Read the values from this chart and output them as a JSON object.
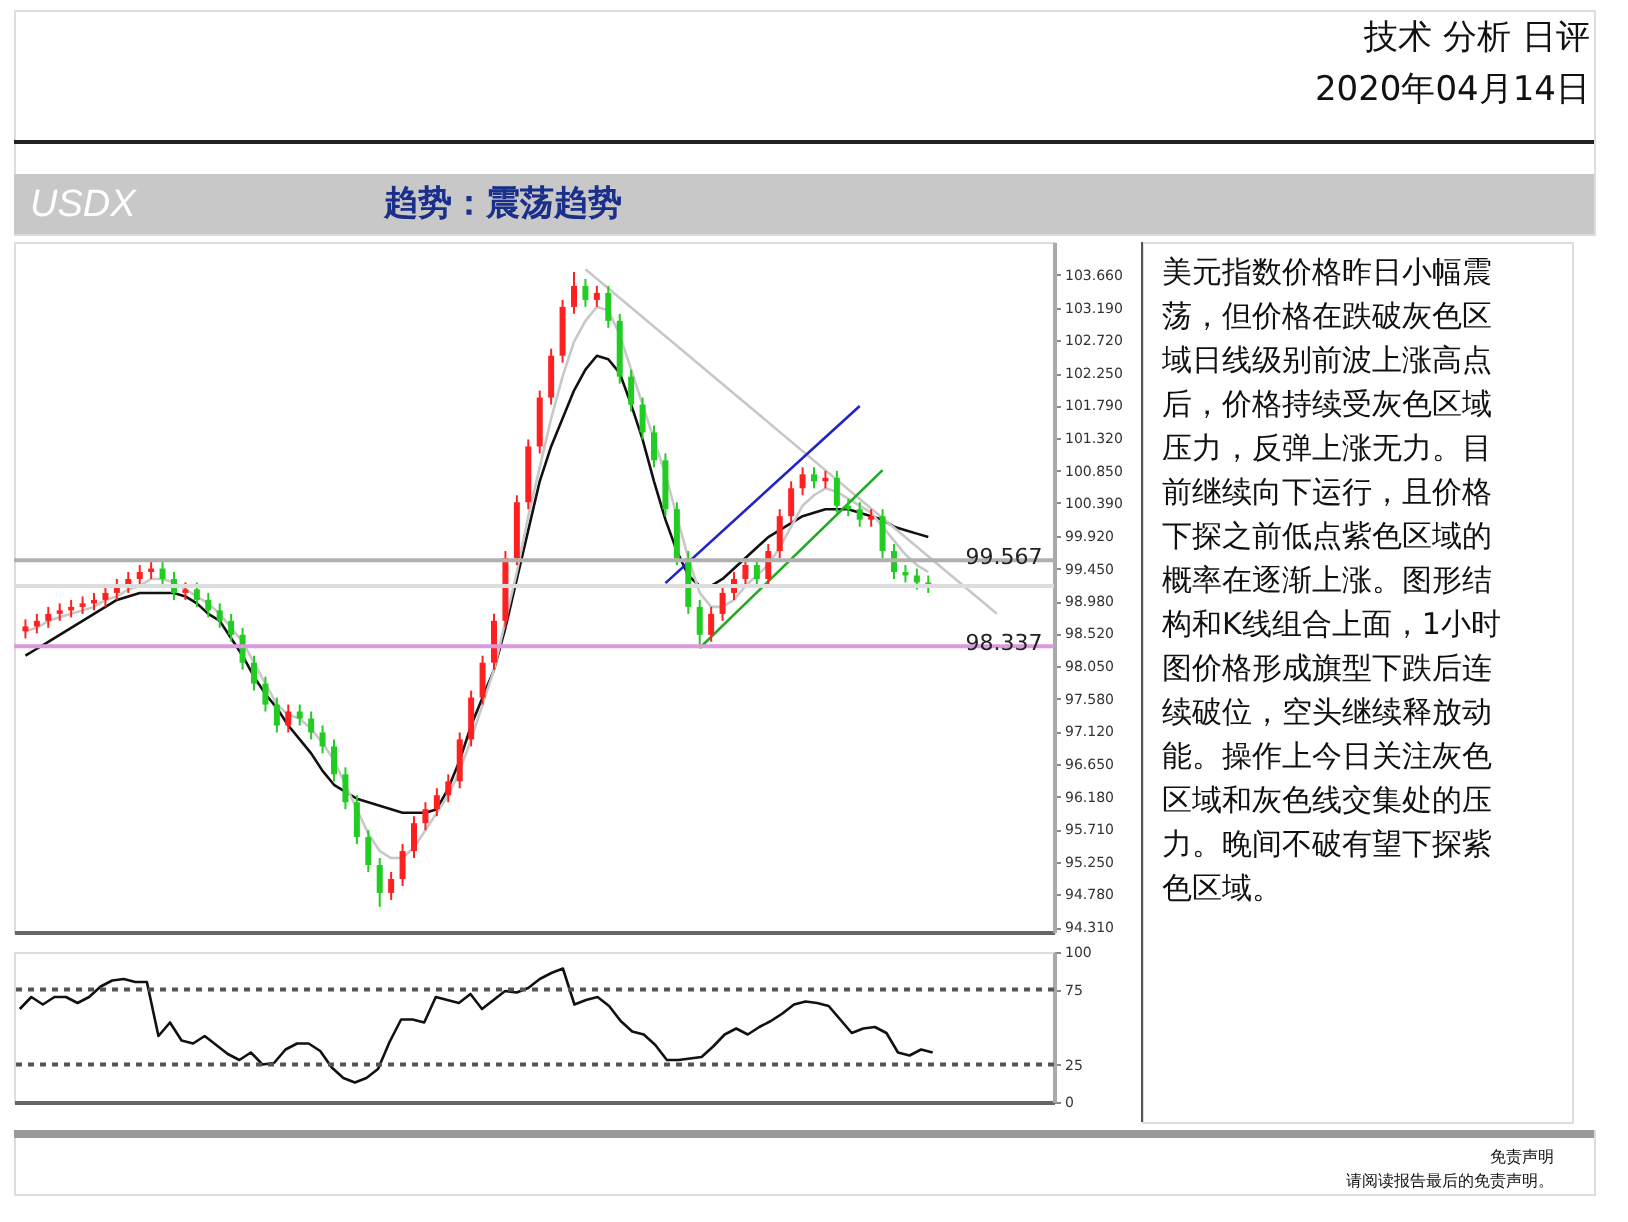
{
  "chart_data": [
    {
      "type": "candlestick",
      "title": "USDX",
      "subtitle": "趋势：震荡趋势",
      "annotations": [
        "技术 分析 日评",
        "2020年04月14日",
        "美元指数价格昨日小幅震荡，但价格在跌破灰色区域日线级别前波上涨高点后，价格持续受灰色区域压力，反弹上涨无力。目前继续向下运行，且价格下探之前低点紫色区域的概率在逐渐上涨。图形结构和K线组合上面，1小时图价格形成旗型下跌后连续破位，空头继续释放动能。操作上今日关注灰色区域和灰色线交集处的压力。晚间不破有望下探紫色区域。",
        "免责声明",
        "请阅读报告最后的免责声明。"
      ],
      "categories": [
        null,
        null,
        null,
        null,
        null,
        null,
        null,
        null,
        null,
        null,
        null,
        null,
        null,
        null,
        null,
        null,
        null,
        null,
        null,
        null,
        null,
        null,
        null,
        null,
        null,
        null,
        null,
        null,
        null,
        null,
        null,
        null,
        null,
        null,
        null,
        null,
        null,
        null,
        null,
        null,
        null,
        null,
        null,
        null,
        null,
        null,
        null,
        null,
        null,
        null,
        null,
        null,
        null,
        null,
        null,
        null,
        null,
        null,
        null,
        null,
        null,
        null,
        null,
        null,
        null,
        null,
        null,
        null,
        null,
        null,
        null,
        null,
        null,
        null,
        null,
        null,
        null,
        null,
        null,
        null,
        null,
        null,
        null,
        null,
        null,
        null,
        null,
        null,
        null,
        null
      ],
      "colors": [
        "#ff2020",
        "#ff2020",
        "#ff2020",
        "#ff2020",
        "#ff2020",
        "#ff2020",
        "#ff2020",
        "#ff2020",
        "#ff2020",
        "#ff2020",
        "#ff2020",
        "#ff2020",
        "#22cc22",
        "#22cc22",
        "#ff2020",
        "#22cc22",
        "#22cc22",
        "#22cc22",
        "#22cc22",
        "#22cc22",
        "#22cc22",
        "#22cc22",
        "#22cc22",
        "#ff2020",
        "#22cc22",
        "#22cc22",
        "#22cc22",
        "#22cc22",
        "#22cc22",
        "#22cc22",
        "#22cc22",
        "#22cc22",
        "#ff2020",
        "#ff2020",
        "#ff2020",
        "#ff2020",
        "#ff2020",
        "#ff2020",
        "#ff2020",
        "#ff2020",
        "#ff2020",
        "#ff2020",
        "#ff2020",
        "#ff2020",
        "#ff2020",
        "#ff2020",
        "#ff2020",
        "#ff2020",
        "#ff2020",
        "#22cc22",
        "#ff2020",
        "#22cc22",
        "#22cc22",
        "#22cc22",
        "#22cc22",
        "#22cc22",
        "#22cc22",
        "#22cc22",
        "#22cc22",
        "#22cc22",
        "#ff2020",
        "#ff2020",
        "#ff2020",
        "#ff2020",
        "#22cc22",
        "#ff2020",
        "#ff2020",
        "#ff2020",
        "#ff2020",
        "#22cc22",
        "#ff2020",
        "#22cc22",
        "#22cc22",
        "#22cc22",
        "#ff2020",
        "#22cc22",
        "#22cc22",
        "#22cc22",
        "#22cc22",
        "#22cc22",
        null,
        null,
        null,
        null,
        null,
        null,
        null,
        null,
        null,
        null
      ],
      "ohlc": [
        [
          98.55,
          98.72,
          98.45,
          98.62
        ],
        [
          98.62,
          98.8,
          98.52,
          98.7
        ],
        [
          98.7,
          98.9,
          98.6,
          98.8
        ],
        [
          98.8,
          98.95,
          98.7,
          98.85
        ],
        [
          98.85,
          99.0,
          98.75,
          98.9
        ],
        [
          98.9,
          99.05,
          98.8,
          98.95
        ],
        [
          98.95,
          99.1,
          98.85,
          99.0
        ],
        [
          99.0,
          99.2,
          98.9,
          99.1
        ],
        [
          99.1,
          99.3,
          99.0,
          99.2
        ],
        [
          99.2,
          99.4,
          99.1,
          99.3
        ],
        [
          99.3,
          99.5,
          99.2,
          99.4
        ],
        [
          99.4,
          99.55,
          99.3,
          99.45
        ],
        [
          99.45,
          99.55,
          99.2,
          99.3
        ],
        [
          99.3,
          99.4,
          99.0,
          99.1
        ],
        [
          99.1,
          99.25,
          99.0,
          99.15
        ],
        [
          99.15,
          99.25,
          98.9,
          99.0
        ],
        [
          99.0,
          99.1,
          98.75,
          98.85
        ],
        [
          98.85,
          98.95,
          98.6,
          98.7
        ],
        [
          98.7,
          98.8,
          98.4,
          98.5
        ],
        [
          98.5,
          98.6,
          98.0,
          98.1
        ],
        [
          98.1,
          98.2,
          97.7,
          97.8
        ],
        [
          97.8,
          97.9,
          97.4,
          97.5
        ],
        [
          97.5,
          97.6,
          97.1,
          97.2
        ],
        [
          97.2,
          97.5,
          97.1,
          97.4
        ],
        [
          97.4,
          97.5,
          97.2,
          97.3
        ],
        [
          97.3,
          97.4,
          97.0,
          97.1
        ],
        [
          97.1,
          97.2,
          96.8,
          96.9
        ],
        [
          96.9,
          97.0,
          96.4,
          96.5
        ],
        [
          96.5,
          96.6,
          96.0,
          96.1
        ],
        [
          96.1,
          96.2,
          95.5,
          95.6
        ],
        [
          95.6,
          95.7,
          95.1,
          95.2
        ],
        [
          95.2,
          95.3,
          94.6,
          94.8
        ],
        [
          94.8,
          95.1,
          94.7,
          95.0
        ],
        [
          95.0,
          95.5,
          94.9,
          95.4
        ],
        [
          95.4,
          95.9,
          95.3,
          95.8
        ],
        [
          95.8,
          96.1,
          95.7,
          96.0
        ],
        [
          96.0,
          96.3,
          95.9,
          96.2
        ],
        [
          96.2,
          96.5,
          96.1,
          96.4
        ],
        [
          96.4,
          97.1,
          96.3,
          97.0
        ],
        [
          97.0,
          97.7,
          96.9,
          97.6
        ],
        [
          97.6,
          98.2,
          97.5,
          98.1
        ],
        [
          98.1,
          98.8,
          98.0,
          98.7
        ],
        [
          98.7,
          99.7,
          98.6,
          99.6
        ],
        [
          99.6,
          100.5,
          99.5,
          100.4
        ],
        [
          100.4,
          101.3,
          100.3,
          101.2
        ],
        [
          101.2,
          102.0,
          101.1,
          101.9
        ],
        [
          101.9,
          102.6,
          101.8,
          102.5
        ],
        [
          102.5,
          103.3,
          102.4,
          103.2
        ],
        [
          103.2,
          103.7,
          103.1,
          103.5
        ],
        [
          103.5,
          103.6,
          103.2,
          103.3
        ],
        [
          103.3,
          103.5,
          103.2,
          103.4
        ],
        [
          103.4,
          103.5,
          102.9,
          103.0
        ],
        [
          103.0,
          103.1,
          102.1,
          102.2
        ],
        [
          102.2,
          102.3,
          101.7,
          101.8
        ],
        [
          101.8,
          101.9,
          101.3,
          101.4
        ],
        [
          101.4,
          101.5,
          100.9,
          101.0
        ],
        [
          101.0,
          101.1,
          100.2,
          100.3
        ],
        [
          100.3,
          100.4,
          99.5,
          99.6
        ],
        [
          99.6,
          99.7,
          98.8,
          98.9
        ],
        [
          98.9,
          99.0,
          98.34,
          98.5
        ],
        [
          98.5,
          98.9,
          98.4,
          98.8
        ],
        [
          98.8,
          99.2,
          98.7,
          99.1
        ],
        [
          99.1,
          99.4,
          99.0,
          99.3
        ],
        [
          99.3,
          99.6,
          99.2,
          99.5
        ],
        [
          99.5,
          99.6,
          99.2,
          99.3
        ],
        [
          99.3,
          99.8,
          99.2,
          99.7
        ],
        [
          99.7,
          100.3,
          99.6,
          100.2
        ],
        [
          100.2,
          100.7,
          100.1,
          100.6
        ],
        [
          100.6,
          100.9,
          100.5,
          100.8
        ],
        [
          100.8,
          100.9,
          100.6,
          100.7
        ],
        [
          100.7,
          100.85,
          100.6,
          100.75
        ],
        [
          100.75,
          100.85,
          100.25,
          100.35
        ],
        [
          100.35,
          100.45,
          100.2,
          100.3
        ],
        [
          100.3,
          100.4,
          100.05,
          100.15
        ],
        [
          100.15,
          100.3,
          100.05,
          100.2
        ],
        [
          100.2,
          100.3,
          99.6,
          99.7
        ],
        [
          99.7,
          99.8,
          99.3,
          99.4
        ],
        [
          99.4,
          99.5,
          99.25,
          99.35
        ],
        [
          99.35,
          99.45,
          99.15,
          99.25
        ],
        [
          99.25,
          99.35,
          99.1,
          99.2
        ],
        null,
        null,
        null,
        null,
        null,
        null,
        null,
        null,
        null,
        null
      ],
      "series": [
        {
          "type": "line",
          "color": "#111111",
          "values": [
            98.2,
            98.3,
            98.4,
            98.5,
            98.6,
            98.7,
            98.8,
            98.9,
            99.0,
            99.05,
            99.1,
            99.1,
            99.1,
            99.1,
            99.05,
            98.95,
            98.8,
            98.7,
            98.45,
            98.2,
            97.9,
            97.65,
            97.45,
            97.2,
            97.0,
            96.8,
            96.55,
            96.35,
            96.25,
            96.15,
            96.1,
            96.05,
            96.0,
            95.95,
            95.95,
            95.95,
            96.0,
            96.3,
            96.7,
            97.2,
            97.6,
            98.0,
            98.6,
            99.3,
            100.0,
            100.7,
            101.2,
            101.6,
            102.0,
            102.3,
            102.5,
            102.45,
            102.25,
            101.8,
            101.3,
            100.7,
            100.15,
            99.7,
            99.35,
            99.2,
            99.2,
            99.3,
            99.45,
            99.6,
            99.75,
            99.9,
            100.0,
            100.1,
            100.2,
            100.25,
            100.3,
            100.3,
            100.3,
            100.25,
            100.2,
            100.15,
            100.05,
            100.0,
            99.95,
            99.9,
            null,
            null,
            null,
            null,
            null,
            null,
            null,
            null,
            null,
            null
          ]
        },
        {
          "type": "line",
          "color": "#c8c8c8",
          "values": [
            98.55,
            98.6,
            98.7,
            98.75,
            98.8,
            98.85,
            98.9,
            99.0,
            99.05,
            99.15,
            99.2,
            99.3,
            99.3,
            99.25,
            99.15,
            99.05,
            98.95,
            98.8,
            98.6,
            98.4,
            98.1,
            97.8,
            97.5,
            97.35,
            97.3,
            97.15,
            96.95,
            96.7,
            96.35,
            96.0,
            95.65,
            95.4,
            95.3,
            95.3,
            95.45,
            95.7,
            95.95,
            96.2,
            96.55,
            97.0,
            97.5,
            98.0,
            98.7,
            99.4,
            100.2,
            100.9,
            101.6,
            102.2,
            102.7,
            103.0,
            103.2,
            103.15,
            102.8,
            102.3,
            101.8,
            101.3,
            100.8,
            100.2,
            99.6,
            99.1,
            98.9,
            98.9,
            99.0,
            99.2,
            99.35,
            99.5,
            99.75,
            100.05,
            100.35,
            100.5,
            100.6,
            100.55,
            100.45,
            100.35,
            100.25,
            100.05,
            99.85,
            99.65,
            99.5,
            99.4,
            null,
            null,
            null,
            null,
            null,
            null,
            null,
            null,
            null,
            null
          ]
        },
        {
          "type": "line",
          "color": "#c8c8c8",
          "values": [
            null,
            null,
            null,
            null,
            null,
            null,
            null,
            null,
            null,
            null,
            null,
            null,
            null,
            null,
            null,
            null,
            null,
            null,
            null,
            null,
            null,
            null,
            null,
            null,
            null,
            null,
            null,
            null,
            null,
            null,
            null,
            null,
            null,
            null,
            null,
            null,
            null,
            null,
            null,
            null,
            null,
            null,
            null,
            null,
            null,
            null,
            null,
            null,
            null,
            103.74,
            null,
            null,
            null,
            null,
            null,
            null,
            null,
            null,
            null,
            null,
            null,
            null,
            null,
            null,
            null,
            null,
            null,
            null,
            null,
            null,
            null,
            null,
            null,
            null,
            null,
            null,
            null,
            null,
            null,
            null,
            null,
            null,
            null,
            null,
            null,
            98.8,
            null,
            null,
            null,
            null
          ]
        },
        {
          "type": "line",
          "color": "#2222cc",
          "values": [
            null,
            null,
            null,
            null,
            null,
            null,
            null,
            null,
            null,
            null,
            null,
            null,
            null,
            null,
            null,
            null,
            null,
            null,
            null,
            null,
            null,
            null,
            null,
            null,
            null,
            null,
            null,
            null,
            null,
            null,
            null,
            null,
            null,
            null,
            null,
            null,
            null,
            null,
            null,
            null,
            null,
            null,
            null,
            null,
            null,
            null,
            null,
            null,
            null,
            null,
            null,
            null,
            null,
            null,
            null,
            null,
            99.24,
            null,
            null,
            null,
            null,
            null,
            null,
            null,
            null,
            null,
            null,
            null,
            null,
            null,
            null,
            null,
            null,
            101.78,
            null,
            null,
            null,
            null,
            null,
            null,
            null,
            null,
            null,
            null,
            null,
            null,
            null,
            null,
            null,
            null
          ]
        },
        {
          "type": "line",
          "color": "#22aa22",
          "values": [
            null,
            null,
            null,
            null,
            null,
            null,
            null,
            null,
            null,
            null,
            null,
            null,
            null,
            null,
            null,
            null,
            null,
            null,
            null,
            null,
            null,
            null,
            null,
            null,
            null,
            null,
            null,
            null,
            null,
            null,
            null,
            null,
            null,
            null,
            null,
            null,
            null,
            null,
            null,
            null,
            null,
            null,
            null,
            null,
            null,
            null,
            null,
            null,
            null,
            null,
            null,
            null,
            null,
            null,
            null,
            null,
            null,
            null,
            null,
            98.31,
            null,
            null,
            null,
            null,
            null,
            null,
            null,
            null,
            null,
            null,
            null,
            null,
            null,
            null,
            null,
            100.86,
            null,
            null,
            null,
            null,
            null,
            null,
            null,
            null,
            null,
            null,
            null,
            null,
            null,
            null
          ]
        }
      ],
      "ref_lines": [
        {
          "axis": "y",
          "value": 99.567,
          "label": "99.567",
          "color": "#b0b0b0"
        },
        {
          "axis": "y",
          "value": 98.337,
          "label": "98.337",
          "color": "#dd99dd"
        },
        {
          "axis": "y",
          "value": 99.2,
          "color": "#dddddd"
        }
      ],
      "ylim": [
        94.24,
        104.13
      ],
      "yticks": [
        {
          "value": 94.31,
          "label": "94.310"
        },
        {
          "value": 94.78,
          "label": "94.780"
        },
        {
          "value": 95.25,
          "label": "95.250"
        },
        {
          "value": 95.71,
          "label": "95.710"
        },
        {
          "value": 96.18,
          "label": "96.180"
        },
        {
          "value": 96.65,
          "label": "96.650"
        },
        {
          "value": 97.12,
          "label": "97.120"
        },
        {
          "value": 97.58,
          "label": "97.580"
        },
        {
          "value": 98.05,
          "label": "98.050"
        },
        {
          "value": 98.52,
          "label": "98.520"
        },
        {
          "value": 98.98,
          "label": "98.980"
        },
        {
          "value": 99.45,
          "label": "99.450"
        },
        {
          "value": 99.92,
          "label": "99.920"
        },
        {
          "value": 100.39,
          "label": "100.390"
        },
        {
          "value": 100.85,
          "label": "100.850"
        },
        {
          "value": 101.32,
          "label": "101.320"
        },
        {
          "value": 101.79,
          "label": "101.790"
        },
        {
          "value": 102.25,
          "label": "102.250"
        },
        {
          "value": 102.72,
          "label": "102.720"
        },
        {
          "value": 103.19,
          "label": "103.190"
        },
        {
          "value": 103.66,
          "label": "103.660"
        }
      ],
      "tick_labels": "y"
    },
    {
      "type": "line",
      "categories": [
        null,
        null,
        null,
        null,
        null,
        null,
        null,
        null,
        null,
        null,
        null,
        null,
        null,
        null,
        null,
        null,
        null,
        null,
        null,
        null,
        null,
        null,
        null,
        null,
        null,
        null,
        null,
        null,
        null,
        null,
        null,
        null,
        null,
        null,
        null,
        null,
        null,
        null,
        null,
        null,
        null,
        null,
        null,
        null,
        null,
        null,
        null,
        null,
        null,
        null,
        null,
        null,
        null,
        null,
        null,
        null,
        null,
        null,
        null,
        null,
        null,
        null,
        null,
        null,
        null,
        null,
        null,
        null,
        null,
        null,
        null,
        null,
        null,
        null,
        null,
        null,
        null,
        null,
        null,
        null,
        null,
        null,
        null,
        null,
        null,
        null,
        null,
        null,
        null,
        null
      ],
      "series": [
        {
          "color": "#111111",
          "values": [
            62,
            70,
            65,
            70,
            70,
            66,
            70,
            77,
            81,
            82,
            80,
            80,
            44,
            53,
            41,
            39,
            44,
            38,
            32,
            28,
            33,
            25,
            26,
            35,
            39,
            39,
            34,
            23,
            16,
            13,
            16,
            22,
            40,
            55,
            55,
            53,
            70,
            68,
            66,
            72,
            62,
            68,
            74,
            73,
            76,
            82,
            86,
            89,
            65,
            68,
            70,
            64,
            54,
            47,
            45,
            38,
            28,
            28,
            29,
            30,
            37,
            45,
            49,
            45,
            50,
            54,
            59,
            65,
            67,
            66,
            64,
            55,
            46,
            49,
            50,
            46,
            33,
            31,
            35,
            33,
            null,
            null,
            null,
            null,
            null,
            null,
            null,
            null,
            null,
            null
          ]
        }
      ],
      "ref_lines": [
        {
          "axis": "y",
          "value": 75,
          "color": "#555555",
          "line_style": "dashed"
        },
        {
          "axis": "y",
          "value": 25,
          "color": "#555555",
          "line_style": "dashed"
        }
      ],
      "ylim": [
        0,
        100
      ],
      "yticks": [
        0,
        25,
        75,
        100
      ],
      "tick_labels": "y"
    }
  ]
}
